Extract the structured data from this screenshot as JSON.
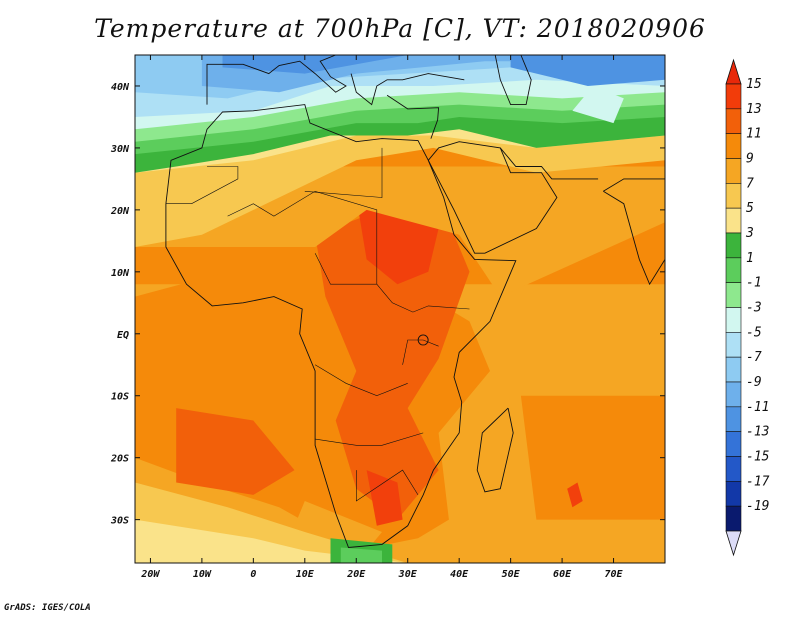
{
  "title": "Temperature at 700hPa [C], VT: 2018020906",
  "credit": "GrADS: IGES/COLA",
  "axes": {
    "lon_labels": [
      "20W",
      "10W",
      "0",
      "10E",
      "20E",
      "30E",
      "40E",
      "50E",
      "60E",
      "70E"
    ],
    "lon_values": [
      -20,
      -10,
      0,
      10,
      20,
      30,
      40,
      50,
      60,
      70
    ],
    "lat_labels": [
      "40N",
      "30N",
      "20N",
      "10N",
      "EQ",
      "10S",
      "20S",
      "30S"
    ],
    "lat_values": [
      40,
      30,
      20,
      10,
      0,
      -10,
      -20,
      -30
    ],
    "lon_range": [
      -23,
      80
    ],
    "lat_range": [
      -37,
      45
    ]
  },
  "colorbar": {
    "labels": [
      "15",
      "13",
      "11",
      "9",
      "7",
      "5",
      "3",
      "1",
      "-1",
      "-3",
      "-5",
      "-7",
      "-9",
      "-11",
      "-13",
      "-15",
      "-17",
      "-19"
    ],
    "colors": [
      "#f23c0a",
      "#f2600a",
      "#f58a0a",
      "#f5a623",
      "#f7c850",
      "#fae38a",
      "#3cb43c",
      "#5ccd5c",
      "#8ee88e",
      "#d2f7f0",
      "#aee0f5",
      "#8ecbf2",
      "#6eb0eb",
      "#4e93e2",
      "#3473d8",
      "#2358c8",
      "#1238a8",
      "#0a1a6e"
    ],
    "over_color": "#e8280a",
    "under_color": "#dcdcf7"
  },
  "field_colors": {
    "c15": "#f2400c",
    "c13": "#f2600a",
    "c11": "#f58a0a",
    "c9": "#f5a623",
    "c7": "#f7c850",
    "c5": "#fae38a",
    "c3": "#3cb43c",
    "c1": "#5ccd5c",
    "cm1": "#8ee88e",
    "cm3": "#d2f7f0",
    "cm5": "#aee0f5",
    "cm7": "#8ecbf2",
    "cm9": "#6eb0eb",
    "cm11": "#4e93e2",
    "cm13": "#3473d8"
  }
}
